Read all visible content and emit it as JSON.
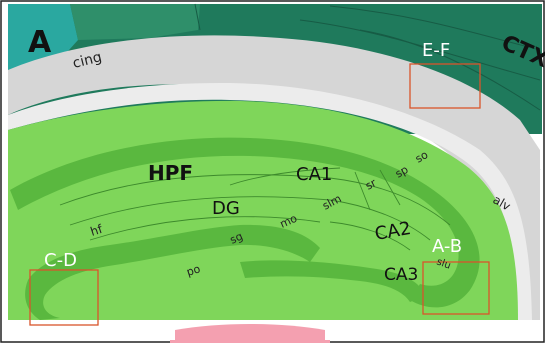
{
  "panel_letter": "A",
  "regions": {
    "cortex": "CTX",
    "cingulum": "cing",
    "hippocampal_formation": "HPF",
    "dentate_gyrus": "DG",
    "ca1": "CA1",
    "ca2": "CA2",
    "ca3": "CA3",
    "hippocampal_fissure": "hf",
    "alveus": "alv"
  },
  "layers": {
    "so": "so",
    "sp": "sp",
    "sr": "sr",
    "slm": "slm",
    "mo": "mo",
    "sg": "sg",
    "po": "po",
    "slu": "slu"
  },
  "boxes": {
    "ef": "E-F",
    "cd": "C-D",
    "ab": "A-B"
  },
  "colors": {
    "cortex_dark": "#1f7a5c",
    "cortex_mid": "#2f8f6a",
    "teal": "#2aa8a0",
    "white_matter": "#d6d6d6",
    "hpf_light": "#7fd65a",
    "hpf_band": "#5ab83f",
    "box_outline": "#d9542b",
    "pink": "#f4a0b0"
  }
}
